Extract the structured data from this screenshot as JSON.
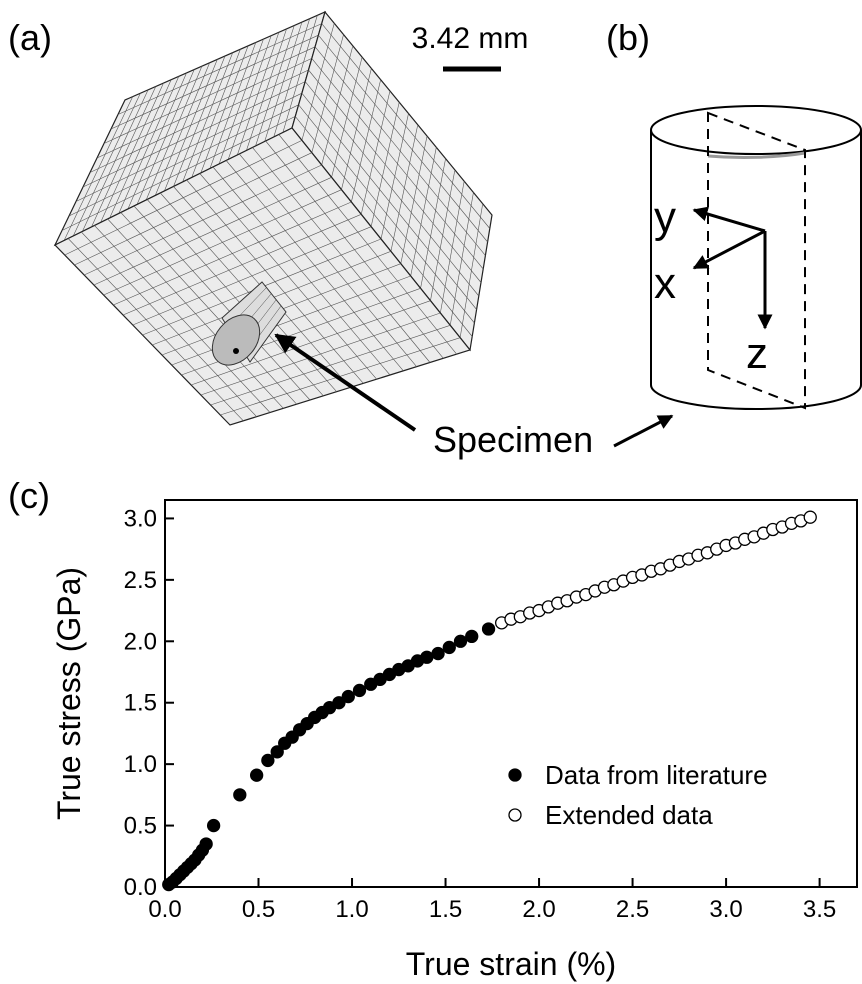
{
  "panels": {
    "a": {
      "label": "(a)",
      "scale_bar": "3.42 mm",
      "callout": "Specimen"
    },
    "b": {
      "label": "(b)",
      "axes": [
        "y",
        "x",
        "z"
      ]
    },
    "c": {
      "label": "(c)"
    }
  },
  "chart_data": {
    "type": "scatter",
    "x_label": "True strain (%)",
    "y_label": "True stress (GPa)",
    "xlim": [
      0,
      3.7
    ],
    "ylim": [
      0,
      3.15
    ],
    "xticks": [
      {
        "value": 0,
        "label": "0.0"
      },
      {
        "value": 0.5,
        "label": "0.5"
      },
      {
        "value": 1,
        "label": "1.0"
      },
      {
        "value": 1.5,
        "label": "1.5"
      },
      {
        "value": 2,
        "label": "2.0"
      },
      {
        "value": 2.5,
        "label": "2.5"
      },
      {
        "value": 3,
        "label": "3.0"
      },
      {
        "value": 3.5,
        "label": "3.5"
      }
    ],
    "yticks": [
      {
        "value": 0,
        "label": "0.0"
      },
      {
        "value": 0.5,
        "label": "0.5"
      },
      {
        "value": 1,
        "label": "1.0"
      },
      {
        "value": 1.5,
        "label": "1.5"
      },
      {
        "value": 2,
        "label": "2.0"
      },
      {
        "value": 2.5,
        "label": "2.5"
      },
      {
        "value": 3,
        "label": "3.0"
      }
    ],
    "legend": "lower right",
    "grid": false,
    "series": [
      {
        "name": "Data from literature",
        "color": "#000000",
        "filled": true,
        "x": [
          0.02,
          0.04,
          0.06,
          0.08,
          0.1,
          0.12,
          0.14,
          0.16,
          0.18,
          0.2,
          0.22,
          0.26,
          0.4,
          0.49,
          0.55,
          0.6,
          0.64,
          0.68,
          0.72,
          0.76,
          0.8,
          0.84,
          0.88,
          0.93,
          0.98,
          1.04,
          1.1,
          1.15,
          1.2,
          1.25,
          1.3,
          1.35,
          1.4,
          1.46,
          1.52,
          1.58,
          1.64,
          1.73
        ],
        "values": [
          0.02,
          0.04,
          0.07,
          0.1,
          0.13,
          0.16,
          0.19,
          0.22,
          0.26,
          0.3,
          0.35,
          0.5,
          0.75,
          0.91,
          1.03,
          1.1,
          1.17,
          1.22,
          1.28,
          1.33,
          1.38,
          1.42,
          1.46,
          1.5,
          1.55,
          1.6,
          1.65,
          1.69,
          1.73,
          1.77,
          1.8,
          1.84,
          1.87,
          1.9,
          1.95,
          2.0,
          2.04,
          2.1
        ]
      },
      {
        "name": "Extended data",
        "color": "#000000",
        "filled": false,
        "x": [
          1.8,
          1.85,
          1.9,
          1.95,
          2.0,
          2.05,
          2.1,
          2.15,
          2.2,
          2.25,
          2.3,
          2.35,
          2.4,
          2.45,
          2.5,
          2.55,
          2.6,
          2.65,
          2.7,
          2.75,
          2.8,
          2.85,
          2.9,
          2.95,
          3.0,
          3.05,
          3.1,
          3.15,
          3.2,
          3.25,
          3.3,
          3.35,
          3.4,
          3.45
        ],
        "values": [
          2.15,
          2.18,
          2.2,
          2.23,
          2.25,
          2.28,
          2.31,
          2.33,
          2.36,
          2.38,
          2.41,
          2.44,
          2.46,
          2.49,
          2.52,
          2.54,
          2.57,
          2.59,
          2.62,
          2.65,
          2.67,
          2.7,
          2.72,
          2.75,
          2.78,
          2.8,
          2.83,
          2.85,
          2.88,
          2.91,
          2.93,
          2.96,
          2.98,
          3.01
        ]
      }
    ]
  }
}
